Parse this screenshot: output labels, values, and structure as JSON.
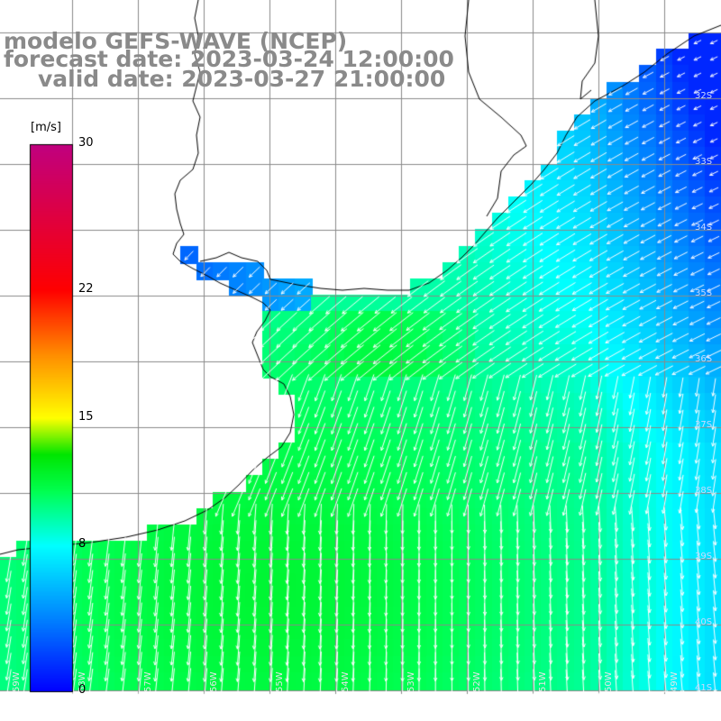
{
  "title": {
    "line1": "modelo GEFS-WAVE (NCEP)",
    "line2": "forecast date: 2023-03-24 12:00:00",
    "line3": "valid date: 2023-03-27 21:00:00"
  },
  "colorbar": {
    "unit": "[m/s]",
    "ticks": [
      "30",
      "22",
      "15",
      "8",
      "0"
    ],
    "tick_values": [
      30,
      22,
      15,
      8,
      0
    ],
    "range": [
      0,
      30
    ],
    "colors": [
      "#0000ff",
      "#0099ff",
      "#00ffff",
      "#00ff00",
      "#ffff00",
      "#ff8800",
      "#ff0000",
      "#c0007f"
    ]
  },
  "map": {
    "lat_labels": [
      "32S",
      "33S",
      "34S",
      "35S",
      "36S",
      "37S",
      "38S",
      "39S",
      "40S",
      "41S"
    ],
    "lon_labels": [
      "59W",
      "58W",
      "57W",
      "56W",
      "55W",
      "54W",
      "53W",
      "52W",
      "51W",
      "50W",
      "49W"
    ],
    "land_color": "#ffffff",
    "grid_color": "#8a8a8a",
    "coast_color": "#000000",
    "arrow_color": "#ffffff",
    "variable": "wind speed"
  }
}
